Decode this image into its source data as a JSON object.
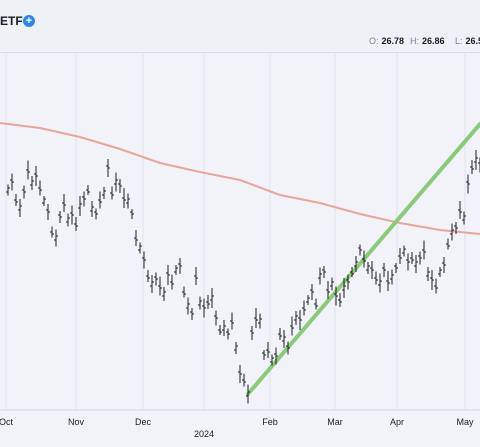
{
  "header": {
    "symbol": "ETF",
    "ohlc": {
      "o_label": "O:",
      "o_value": "26.78",
      "h_label": "H:",
      "h_value": "26.86",
      "l_label": "L:",
      "l_value": "26.5"
    }
  },
  "colors": {
    "bars": "#1a1d24",
    "ma": "#e8a59c",
    "trend": "#8cc97a",
    "grid": "#dfe3ea",
    "header_bg": "#eef1f6",
    "plot_bg": "#f1f3f8"
  },
  "chart_data": {
    "type": "ohlc-bar",
    "x_axis_labels": [
      "Oct",
      "Nov",
      "Dec",
      "2024",
      "Feb",
      "Mar",
      "Apr",
      "May"
    ],
    "ohlc_bars": [],
    "moving_average": [],
    "trendline": []
  }
}
